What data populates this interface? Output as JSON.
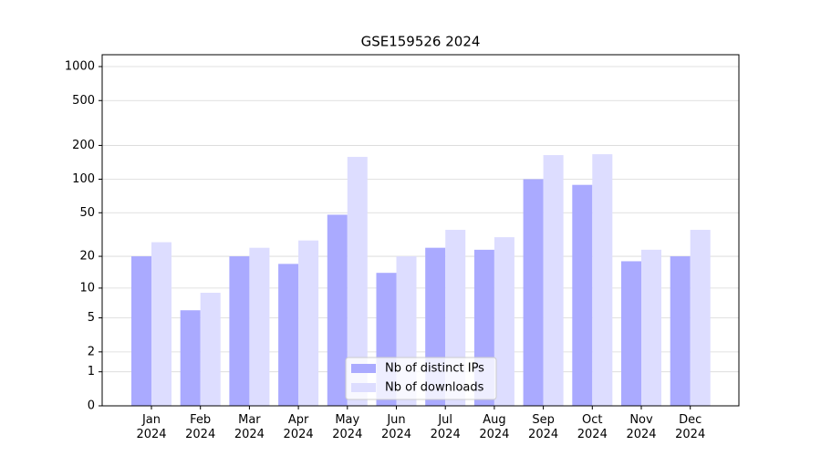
{
  "chart_data": {
    "type": "bar",
    "title": "GSE159526 2024",
    "categories": [
      "Jan\n2024",
      "Feb\n2024",
      "Mar\n2024",
      "Apr\n2024",
      "May\n2024",
      "Jun\n2024",
      "Jul\n2024",
      "Aug\n2024",
      "Sep\n2024",
      "Oct\n2024",
      "Nov\n2024",
      "Dec\n2024"
    ],
    "series": [
      {
        "name": "Nb of distinct IPs",
        "color": "#aaaaff",
        "values": [
          20,
          6,
          20,
          17,
          48,
          14,
          24,
          23,
          100,
          89,
          18,
          20
        ]
      },
      {
        "name": "Nb of downloads",
        "color": "#ddddff",
        "values": [
          27,
          9,
          24,
          28,
          158,
          20,
          35,
          30,
          164,
          167,
          23,
          35
        ]
      }
    ],
    "yscale": "log1p",
    "ylim": [
      0,
      1273
    ],
    "yticks": [
      0,
      1,
      2,
      5,
      10,
      20,
      50,
      100,
      200,
      500,
      1000
    ],
    "grid": true,
    "legend": "lower center"
  }
}
